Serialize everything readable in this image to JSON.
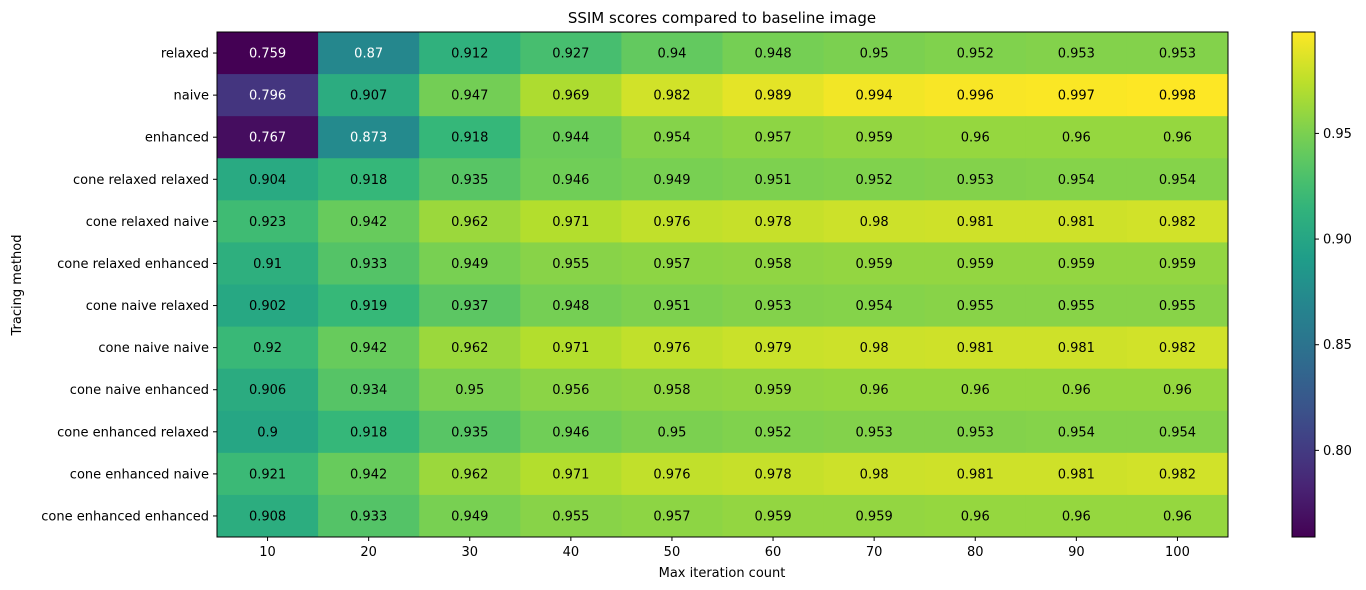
{
  "chart_data": {
    "type": "heatmap",
    "title": "SSIM scores compared to baseline image",
    "xlabel": "Max iteration count",
    "ylabel": "Tracing method",
    "x_categories": [
      "10",
      "20",
      "30",
      "40",
      "50",
      "60",
      "70",
      "80",
      "90",
      "100"
    ],
    "y_categories": [
      "relaxed",
      "naive",
      "enhanced",
      "cone relaxed relaxed",
      "cone relaxed naive",
      "cone relaxed enhanced",
      "cone naive relaxed",
      "cone naive naive",
      "cone naive enhanced",
      "cone enhanced relaxed",
      "cone enhanced naive",
      "cone enhanced enhanced"
    ],
    "values": [
      [
        0.759,
        0.87,
        0.912,
        0.927,
        0.94,
        0.948,
        0.95,
        0.952,
        0.953,
        0.953
      ],
      [
        0.796,
        0.907,
        0.947,
        0.969,
        0.982,
        0.989,
        0.994,
        0.996,
        0.997,
        0.998
      ],
      [
        0.767,
        0.873,
        0.918,
        0.944,
        0.954,
        0.957,
        0.959,
        0.96,
        0.96,
        0.96
      ],
      [
        0.904,
        0.918,
        0.935,
        0.946,
        0.949,
        0.951,
        0.952,
        0.953,
        0.954,
        0.954
      ],
      [
        0.923,
        0.942,
        0.962,
        0.971,
        0.976,
        0.978,
        0.98,
        0.981,
        0.981,
        0.982
      ],
      [
        0.91,
        0.933,
        0.949,
        0.955,
        0.957,
        0.958,
        0.959,
        0.959,
        0.959,
        0.959
      ],
      [
        0.902,
        0.919,
        0.937,
        0.948,
        0.951,
        0.953,
        0.954,
        0.955,
        0.955,
        0.955
      ],
      [
        0.92,
        0.942,
        0.962,
        0.971,
        0.976,
        0.979,
        0.98,
        0.981,
        0.981,
        0.982
      ],
      [
        0.906,
        0.934,
        0.95,
        0.956,
        0.958,
        0.959,
        0.96,
        0.96,
        0.96,
        0.96
      ],
      [
        0.9,
        0.918,
        0.935,
        0.946,
        0.95,
        0.952,
        0.953,
        0.953,
        0.954,
        0.954
      ],
      [
        0.921,
        0.942,
        0.962,
        0.971,
        0.976,
        0.978,
        0.98,
        0.981,
        0.981,
        0.982
      ],
      [
        0.908,
        0.933,
        0.949,
        0.955,
        0.957,
        0.959,
        0.959,
        0.96,
        0.96,
        0.96
      ]
    ],
    "colormap": "viridis",
    "color_range": [
      0.759,
      0.998
    ],
    "colorbar_ticks": [
      0.8,
      0.85,
      0.9,
      0.95
    ],
    "colorbar_tick_labels": [
      "0.80",
      "0.85",
      "0.90",
      "0.95"
    ],
    "grid": false,
    "text_colors": {
      "dark_cell": "#ffffff",
      "light_cell": "#000000"
    }
  }
}
